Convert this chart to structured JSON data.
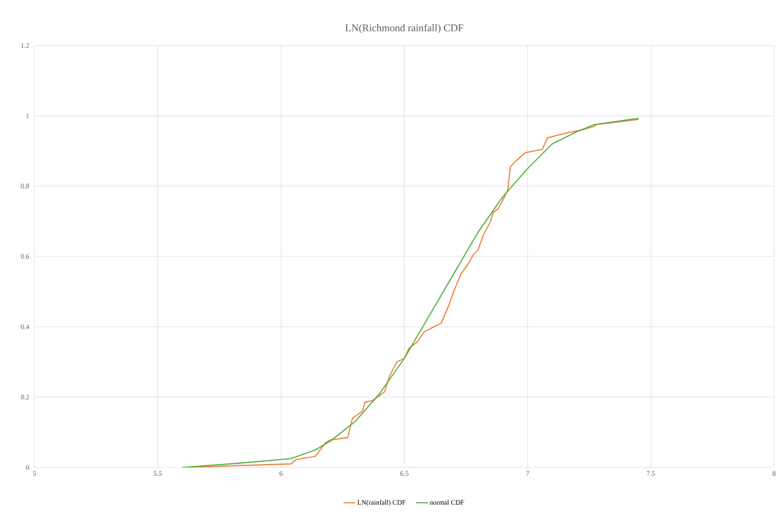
{
  "chart_data": {
    "type": "line",
    "title": "LN(Richmond rainfall) CDF",
    "xlim": [
      5,
      8
    ],
    "xticks": [
      5,
      5.5,
      6,
      6.5,
      7,
      7.5,
      8
    ],
    "ylim": [
      0,
      1.2
    ],
    "yticks": [
      0,
      0.2,
      0.4,
      0.6,
      0.8,
      1,
      1.2
    ],
    "grid": true,
    "legend": "bottom",
    "marker": "none",
    "line_style": "solid",
    "series": [
      {
        "name": "LN(rainfall) CDF",
        "color": "#ed7d31",
        "x": [
          5.6,
          6.04,
          6.06,
          6.14,
          6.18,
          6.2,
          6.27,
          6.29,
          6.33,
          6.34,
          6.37,
          6.42,
          6.44,
          6.47,
          6.5,
          6.52,
          6.55,
          6.58,
          6.62,
          6.65,
          6.68,
          6.7,
          6.73,
          6.76,
          6.78,
          6.8,
          6.82,
          6.85,
          6.86,
          6.88,
          6.9,
          6.92,
          6.93,
          6.95,
          6.99,
          7.06,
          7.08,
          7.15,
          7.22,
          7.27,
          7.28,
          7.45
        ],
        "values": [
          0,
          0.01,
          0.022,
          0.032,
          0.07,
          0.078,
          0.085,
          0.14,
          0.16,
          0.185,
          0.19,
          0.215,
          0.26,
          0.3,
          0.31,
          0.34,
          0.355,
          0.385,
          0.4,
          0.41,
          0.46,
          0.5,
          0.55,
          0.58,
          0.605,
          0.62,
          0.66,
          0.7,
          0.725,
          0.735,
          0.76,
          0.79,
          0.855,
          0.87,
          0.895,
          0.905,
          0.937,
          0.95,
          0.96,
          0.97,
          0.975,
          0.99
        ]
      },
      {
        "name": "normal CDF",
        "color": "#4caf3f",
        "x": [
          5.6,
          5.83,
          6.04,
          6.14,
          6.2,
          6.3,
          6.4,
          6.5,
          6.6,
          6.7,
          6.8,
          6.9,
          7.0,
          7.1,
          7.2,
          7.27,
          7.45
        ],
        "values": [
          0,
          0.012,
          0.025,
          0.05,
          0.075,
          0.13,
          0.21,
          0.31,
          0.43,
          0.55,
          0.67,
          0.77,
          0.85,
          0.92,
          0.955,
          0.975,
          0.993
        ]
      }
    ]
  }
}
